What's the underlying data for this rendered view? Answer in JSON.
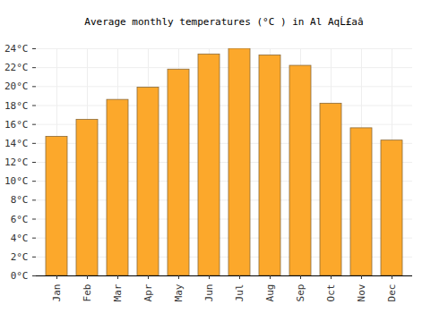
{
  "chart_data": {
    "type": "bar",
    "title": "Average monthly temperatures (°C ) in Al AqĹ£aâ",
    "categories": [
      "Jan",
      "Feb",
      "Mar",
      "Apr",
      "May",
      "Jun",
      "Jul",
      "Aug",
      "Sep",
      "Oct",
      "Nov",
      "Dec"
    ],
    "values": [
      14.7,
      16.5,
      18.6,
      19.9,
      21.8,
      23.4,
      24.0,
      23.3,
      22.2,
      18.2,
      15.6,
      14.3
    ],
    "color": "#fca82b",
    "ylim": [
      0,
      24
    ],
    "yticks": [
      {
        "value": 0,
        "label": "0°C"
      },
      {
        "value": 2,
        "label": "2°C"
      },
      {
        "value": 4,
        "label": "4°C"
      },
      {
        "value": 6,
        "label": "6°C"
      },
      {
        "value": 8,
        "label": "8°C"
      },
      {
        "value": 10,
        "label": "10°C"
      },
      {
        "value": 12,
        "label": "12°C"
      },
      {
        "value": 14,
        "label": "14°C"
      },
      {
        "value": 16,
        "label": "16°C"
      },
      {
        "value": 18,
        "label": "18°C"
      },
      {
        "value": 20,
        "label": "20°C"
      },
      {
        "value": 22,
        "label": "22°C"
      },
      {
        "value": 24,
        "label": "24°C"
      }
    ],
    "grid": true
  }
}
